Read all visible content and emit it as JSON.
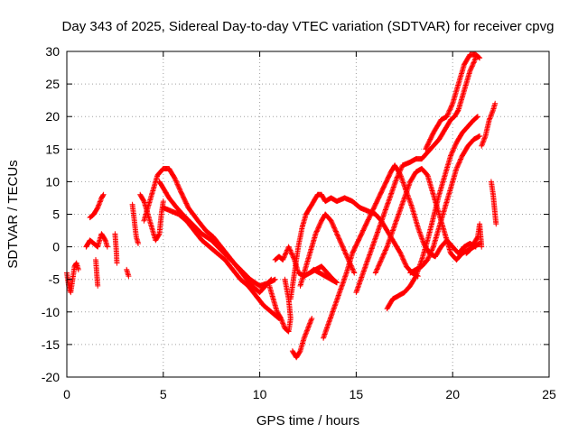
{
  "chart_data": {
    "type": "scatter",
    "title": "Day 343 of 2025, Sidereal Day-to-day VTEC variation (SDTVAR) for receiver cpvg",
    "xlabel": "GPS time / hours",
    "ylabel": "SDTVAR / TECUs",
    "xlim": [
      0,
      25
    ],
    "ylim": [
      -20,
      30
    ],
    "xticks": [
      0,
      5,
      10,
      15,
      20,
      25
    ],
    "yticks": [
      -20,
      -15,
      -10,
      -5,
      0,
      5,
      10,
      15,
      20,
      25,
      30
    ],
    "grid": true,
    "marker": "+",
    "series": [
      {
        "name": "SDTVAR",
        "color": "#ff0000",
        "tracks": [
          [
            [
              0.0,
              -4
            ],
            [
              0.1,
              -6
            ],
            [
              0.2,
              -7
            ],
            [
              0.3,
              -5
            ],
            [
              0.4,
              -3
            ],
            [
              0.5,
              -2.5
            ],
            [
              0.6,
              -3.5
            ]
          ],
          [
            [
              1.0,
              0
            ],
            [
              1.2,
              1
            ],
            [
              1.4,
              0.5
            ],
            [
              1.6,
              0
            ],
            [
              1.7,
              1
            ],
            [
              1.8,
              2
            ],
            [
              2.0,
              1
            ],
            [
              2.1,
              0
            ]
          ],
          [
            [
              1.2,
              4.5
            ],
            [
              1.4,
              5
            ],
            [
              1.6,
              6
            ],
            [
              1.8,
              7.5
            ],
            [
              1.9,
              8
            ]
          ],
          [
            [
              1.5,
              -2
            ],
            [
              1.55,
              -4
            ],
            [
              1.6,
              -6
            ]
          ],
          [
            [
              2.5,
              2
            ],
            [
              2.55,
              0
            ],
            [
              2.6,
              -2.5
            ]
          ],
          [
            [
              3.1,
              -3.5
            ],
            [
              3.2,
              -4.5
            ]
          ],
          [
            [
              3.4,
              6.5
            ],
            [
              3.5,
              4
            ],
            [
              3.6,
              1.5
            ],
            [
              3.7,
              0.5
            ]
          ],
          [
            [
              3.8,
              8
            ],
            [
              4.0,
              7
            ],
            [
              4.2,
              5
            ],
            [
              4.4,
              3
            ],
            [
              4.6,
              1
            ],
            [
              4.8,
              2
            ],
            [
              4.9,
              5
            ],
            [
              5.0,
              7
            ]
          ],
          [
            [
              4.0,
              4
            ],
            [
              4.2,
              6
            ],
            [
              4.4,
              8
            ],
            [
              4.7,
              11
            ],
            [
              5.0,
              12
            ],
            [
              5.3,
              12
            ],
            [
              5.6,
              10.5
            ],
            [
              5.9,
              8.5
            ],
            [
              6.3,
              6
            ],
            [
              6.8,
              4
            ],
            [
              7.2,
              2.5
            ],
            [
              7.6,
              1.5
            ],
            [
              8.0,
              0
            ],
            [
              8.4,
              -1.5
            ],
            [
              8.8,
              -3
            ],
            [
              9.2,
              -4.5
            ],
            [
              9.6,
              -6
            ],
            [
              10.0,
              -7
            ],
            [
              10.3,
              -6
            ],
            [
              10.6,
              -5
            ]
          ],
          [
            [
              4.8,
              10
            ],
            [
              5.0,
              9
            ],
            [
              5.3,
              7.5
            ],
            [
              5.7,
              6
            ],
            [
              6.0,
              5
            ],
            [
              6.5,
              3.5
            ],
            [
              7.0,
              2
            ],
            [
              7.5,
              1
            ],
            [
              8.0,
              -0.5
            ],
            [
              8.5,
              -2
            ],
            [
              9.0,
              -3.5
            ],
            [
              9.5,
              -5
            ],
            [
              10.0,
              -6
            ],
            [
              10.5,
              -5.5
            ],
            [
              10.8,
              -5
            ]
          ],
          [
            [
              5.0,
              6
            ],
            [
              5.4,
              5.5
            ],
            [
              5.8,
              5
            ],
            [
              6.2,
              4
            ],
            [
              6.6,
              2.5
            ],
            [
              7.0,
              1
            ],
            [
              7.4,
              0
            ],
            [
              7.8,
              -1
            ],
            [
              8.2,
              -2
            ],
            [
              8.6,
              -3.5
            ],
            [
              9.0,
              -5
            ],
            [
              9.4,
              -6
            ],
            [
              9.8,
              -7.5
            ],
            [
              10.2,
              -9
            ],
            [
              10.6,
              -10
            ],
            [
              11.0,
              -11
            ]
          ],
          [
            [
              10.5,
              -6
            ],
            [
              10.7,
              -8
            ],
            [
              10.9,
              -10
            ],
            [
              11.1,
              -11
            ],
            [
              11.3,
              -12.5
            ],
            [
              11.5,
              -13
            ],
            [
              11.6,
              -11
            ],
            [
              11.5,
              -8
            ],
            [
              11.3,
              -5
            ]
          ],
          [
            [
              10.8,
              -2
            ],
            [
              11.0,
              -1.5
            ],
            [
              11.2,
              -2
            ],
            [
              11.5,
              0
            ],
            [
              11.8,
              -2
            ],
            [
              12.0,
              -4
            ],
            [
              12.3,
              -4.5
            ],
            [
              12.6,
              -4
            ],
            [
              12.9,
              -3.5
            ],
            [
              13.2,
              -3
            ],
            [
              13.5,
              -4
            ],
            [
              13.8,
              -5
            ],
            [
              14.0,
              -5.5
            ]
          ],
          [
            [
              11.7,
              -16
            ],
            [
              11.9,
              -17
            ],
            [
              12.1,
              -16
            ],
            [
              12.3,
              -14
            ],
            [
              12.5,
              -12.5
            ],
            [
              12.7,
              -11
            ]
          ],
          [
            [
              11.6,
              -8
            ],
            [
              11.8,
              -4
            ],
            [
              12.0,
              0
            ],
            [
              12.2,
              3
            ],
            [
              12.4,
              5
            ],
            [
              12.6,
              6
            ],
            [
              12.8,
              7
            ],
            [
              13.0,
              8
            ],
            [
              13.2,
              8
            ],
            [
              13.4,
              7
            ],
            [
              13.7,
              7.5
            ],
            [
              14.0,
              7
            ],
            [
              14.4,
              7.5
            ],
            [
              14.8,
              7
            ],
            [
              15.2,
              6
            ],
            [
              15.6,
              5.5
            ],
            [
              16.0,
              5
            ],
            [
              16.3,
              4
            ],
            [
              16.6,
              2.5
            ],
            [
              17.0,
              0.5
            ],
            [
              17.3,
              -1
            ],
            [
              17.6,
              -3
            ],
            [
              17.9,
              -4
            ],
            [
              18.2,
              -4.5
            ]
          ],
          [
            [
              12.1,
              -6
            ],
            [
              12.3,
              -4
            ],
            [
              12.5,
              -2
            ],
            [
              12.7,
              0
            ],
            [
              12.9,
              2
            ],
            [
              13.2,
              4
            ],
            [
              13.4,
              5
            ],
            [
              13.7,
              4
            ],
            [
              14.0,
              2
            ],
            [
              14.3,
              0
            ],
            [
              14.6,
              -2
            ],
            [
              14.9,
              -4
            ]
          ],
          [
            [
              12.6,
              -4
            ],
            [
              12.8,
              -3.5
            ],
            [
              13.1,
              -4
            ],
            [
              13.4,
              -4.5
            ],
            [
              13.7,
              -5
            ],
            [
              14.0,
              -5.5
            ]
          ],
          [
            [
              13.3,
              -14
            ],
            [
              13.6,
              -11.5
            ],
            [
              13.9,
              -9
            ],
            [
              14.2,
              -6.5
            ],
            [
              14.5,
              -4
            ],
            [
              14.8,
              -1
            ],
            [
              15.2,
              1.5
            ],
            [
              15.6,
              4
            ],
            [
              16.0,
              6.5
            ],
            [
              16.4,
              9
            ],
            [
              16.8,
              11.5
            ],
            [
              17.0,
              12.5
            ],
            [
              17.3,
              11
            ],
            [
              17.6,
              8.5
            ],
            [
              17.9,
              6
            ],
            [
              18.2,
              3
            ],
            [
              18.5,
              0.5
            ],
            [
              18.8,
              -1
            ],
            [
              19.1,
              -1.5
            ],
            [
              19.4,
              0
            ],
            [
              19.7,
              1
            ],
            [
              20.0,
              0
            ],
            [
              20.3,
              -1
            ],
            [
              20.6,
              0
            ],
            [
              20.9,
              0.5
            ],
            [
              21.2,
              0
            ]
          ],
          [
            [
              15.0,
              -7
            ],
            [
              15.3,
              -4.5
            ],
            [
              15.6,
              -2
            ],
            [
              15.9,
              0.5
            ],
            [
              16.2,
              3
            ],
            [
              16.5,
              5.5
            ],
            [
              16.8,
              8
            ],
            [
              17.1,
              10.5
            ],
            [
              17.4,
              12.5
            ],
            [
              17.8,
              13
            ],
            [
              18.1,
              13.5
            ],
            [
              18.4,
              13.5
            ],
            [
              18.7,
              14.5
            ],
            [
              19.0,
              15.5
            ],
            [
              19.3,
              16.5
            ],
            [
              19.6,
              18
            ],
            [
              19.9,
              19.5
            ],
            [
              20.1,
              20
            ],
            [
              20.3,
              21
            ],
            [
              20.6,
              24
            ],
            [
              20.9,
              27
            ],
            [
              21.2,
              29
            ]
          ],
          [
            [
              16.0,
              -4
            ],
            [
              16.3,
              -2
            ],
            [
              16.6,
              0
            ],
            [
              16.9,
              2.5
            ],
            [
              17.2,
              5
            ],
            [
              17.5,
              7.5
            ],
            [
              17.8,
              10
            ],
            [
              18.1,
              11.5
            ],
            [
              18.4,
              12
            ],
            [
              18.7,
              11
            ],
            [
              19.0,
              8
            ],
            [
              19.3,
              5
            ],
            [
              19.6,
              2
            ],
            [
              19.9,
              -1
            ],
            [
              20.2,
              -2
            ],
            [
              20.5,
              -1
            ],
            [
              20.8,
              -0.5
            ],
            [
              21.1,
              0
            ],
            [
              21.4,
              0.5
            ]
          ],
          [
            [
              16.6,
              -9.5
            ],
            [
              16.9,
              -8
            ],
            [
              17.2,
              -7.5
            ],
            [
              17.5,
              -7
            ],
            [
              17.8,
              -6
            ],
            [
              18.1,
              -4.5
            ],
            [
              18.4,
              -2
            ],
            [
              18.7,
              1
            ],
            [
              19.0,
              4.5
            ],
            [
              19.3,
              8
            ],
            [
              19.6,
              11
            ],
            [
              19.9,
              14
            ],
            [
              20.2,
              16
            ],
            [
              20.5,
              17.5
            ],
            [
              20.8,
              18.5
            ],
            [
              21.1,
              19.5
            ],
            [
              21.3,
              20
            ]
          ],
          [
            [
              17.8,
              -4
            ],
            [
              18.1,
              -3.5
            ],
            [
              18.4,
              -3
            ],
            [
              18.7,
              -2
            ],
            [
              19.0,
              0
            ],
            [
              19.3,
              3
            ],
            [
              19.6,
              6
            ],
            [
              19.9,
              9
            ],
            [
              20.2,
              12
            ],
            [
              20.5,
              14
            ],
            [
              20.8,
              15.5
            ],
            [
              21.1,
              16.5
            ],
            [
              21.4,
              17
            ]
          ],
          [
            [
              18.6,
              15
            ],
            [
              19.0,
              17.5
            ],
            [
              19.4,
              19.5
            ],
            [
              19.7,
              20
            ],
            [
              20.0,
              22
            ],
            [
              20.3,
              25
            ],
            [
              20.6,
              28
            ],
            [
              20.9,
              29.5
            ],
            [
              21.2,
              29.5
            ],
            [
              21.4,
              29
            ]
          ],
          [
            [
              20.7,
              -1
            ],
            [
              20.9,
              -0.5
            ],
            [
              21.1,
              0.5
            ],
            [
              21.3,
              1.5
            ],
            [
              21.4,
              3.5
            ],
            [
              21.5,
              0
            ]
          ],
          [
            [
              21.5,
              15.5
            ],
            [
              21.7,
              17
            ],
            [
              21.9,
              19.5
            ],
            [
              22.1,
              21
            ],
            [
              22.2,
              22
            ]
          ],
          [
            [
              22.0,
              10
            ],
            [
              22.1,
              8
            ],
            [
              22.2,
              5
            ],
            [
              22.25,
              3.5
            ]
          ]
        ]
      }
    ]
  }
}
